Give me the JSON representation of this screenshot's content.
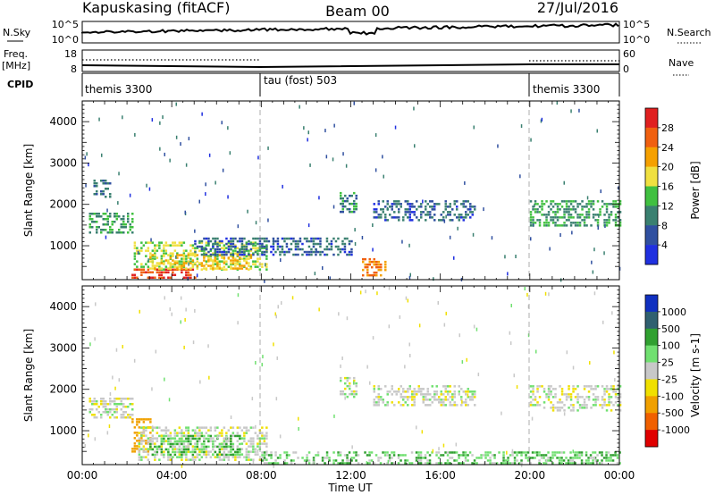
{
  "header": {
    "station": "Kapuskasing (fitACF)",
    "beam": "Beam 00",
    "date": "27/Jul/2016"
  },
  "panels": {
    "nsky": {
      "label": "N.Sky",
      "right_label": "N.Search",
      "left_ticks": [
        "10^5",
        "10^0"
      ],
      "right_ticks": [
        "10^5",
        "10^0"
      ]
    },
    "freq": {
      "label_line1": "Freq.",
      "label_line2": "[MHz]",
      "right_label": "Nave",
      "left_ticks": [
        "18",
        "8"
      ],
      "right_ticks": [
        "60",
        "0"
      ]
    },
    "cpid": {
      "label": "CPID",
      "segments": [
        {
          "text": "themis 3300",
          "start": 0,
          "end": 8
        },
        {
          "text": "tau (fost) 503",
          "start": 8,
          "end": 20
        },
        {
          "text": "themis 3300",
          "start": 20,
          "end": 24
        }
      ]
    }
  },
  "axes": {
    "y_label": "Slant Range [km]",
    "x_label": "Time UT",
    "x_tick_labels": [
      "00:00",
      "04:00",
      "08:00",
      "12:00",
      "16:00",
      "20:00",
      "00:00"
    ],
    "x_tick_hours": [
      0,
      4,
      8,
      12,
      16,
      20,
      24
    ],
    "y_tick_labels": [
      "1000",
      "2000",
      "3000",
      "4000"
    ],
    "y_tick_values": [
      1000,
      2000,
      3000,
      4000
    ],
    "y_range": [
      180,
      4500
    ],
    "x_range": [
      0,
      24
    ]
  },
  "power_colorbar": {
    "label": "Power [dB]",
    "ticks": [
      "28",
      "24",
      "20",
      "16",
      "12",
      "8",
      "4"
    ],
    "colors": [
      "#e02020",
      "#f06010",
      "#f5a000",
      "#f0e040",
      "#40c040",
      "#3a8070",
      "#3050a0",
      "#2030e0"
    ]
  },
  "velocity_colorbar": {
    "label": "Velocity [m s-1]",
    "ticks": [
      "1000",
      "500",
      "100",
      "25",
      "-25",
      "-100",
      "-500",
      "-1000"
    ],
    "colors": [
      "#1030c0",
      "#306070",
      "#30a030",
      "#70e070",
      "#c8c8c8",
      "#f0e000",
      "#f0a000",
      "#f06000",
      "#e00000"
    ]
  },
  "chart_data": [
    {
      "type": "heatmap",
      "name": "Power",
      "x_unit": "hours UT",
      "y_unit": "km",
      "value_unit": "dB",
      "features": [
        {
          "t_start": 0.3,
          "t_end": 2.2,
          "r_start": 1300,
          "r_end": 1800,
          "value": 10
        },
        {
          "t_start": 0.5,
          "t_end": 1.2,
          "r_start": 2200,
          "r_end": 2600,
          "value": 6
        },
        {
          "t_start": 2.3,
          "t_end": 8.2,
          "r_start": 400,
          "r_end": 1100,
          "value": 14
        },
        {
          "t_start": 2.2,
          "t_end": 5.0,
          "r_start": 200,
          "r_end": 450,
          "value": 26
        },
        {
          "t_start": 3.0,
          "t_end": 7.5,
          "r_start": 450,
          "r_end": 800,
          "value": 18
        },
        {
          "t_start": 5.0,
          "t_end": 12.0,
          "r_start": 800,
          "r_end": 1200,
          "value": 6
        },
        {
          "t_start": 11.5,
          "t_end": 12.2,
          "r_start": 1800,
          "r_end": 2300,
          "value": 8
        },
        {
          "t_start": 12.5,
          "t_end": 13.5,
          "r_start": 300,
          "r_end": 700,
          "value": 22
        },
        {
          "t_start": 13.0,
          "t_end": 17.5,
          "r_start": 1600,
          "r_end": 2100,
          "value": 6
        },
        {
          "t_start": 20.0,
          "t_end": 24.0,
          "r_start": 1500,
          "r_end": 2100,
          "value": 10
        }
      ]
    },
    {
      "type": "heatmap",
      "name": "Velocity",
      "x_unit": "hours UT",
      "y_unit": "km",
      "value_unit": "m/s",
      "features": [
        {
          "t_start": 0.3,
          "t_end": 2.2,
          "r_start": 1300,
          "r_end": 1800,
          "value": 0
        },
        {
          "t_start": 2.2,
          "t_end": 3.0,
          "r_start": 500,
          "r_end": 1300,
          "value": -200
        },
        {
          "t_start": 2.5,
          "t_end": 8.2,
          "r_start": 300,
          "r_end": 1100,
          "value": 0
        },
        {
          "t_start": 3.0,
          "t_end": 7.0,
          "r_start": 400,
          "r_end": 900,
          "value": 60
        },
        {
          "t_start": 8.0,
          "t_end": 24.0,
          "r_start": 180,
          "r_end": 500,
          "value": 50
        },
        {
          "t_start": 11.5,
          "t_end": 12.2,
          "r_start": 1800,
          "r_end": 2300,
          "value": 0
        },
        {
          "t_start": 13.0,
          "t_end": 17.5,
          "r_start": 1600,
          "r_end": 2100,
          "value": 0
        },
        {
          "t_start": 20.0,
          "t_end": 24.0,
          "r_start": 1500,
          "r_end": 2100,
          "value": 0
        }
      ]
    }
  ]
}
